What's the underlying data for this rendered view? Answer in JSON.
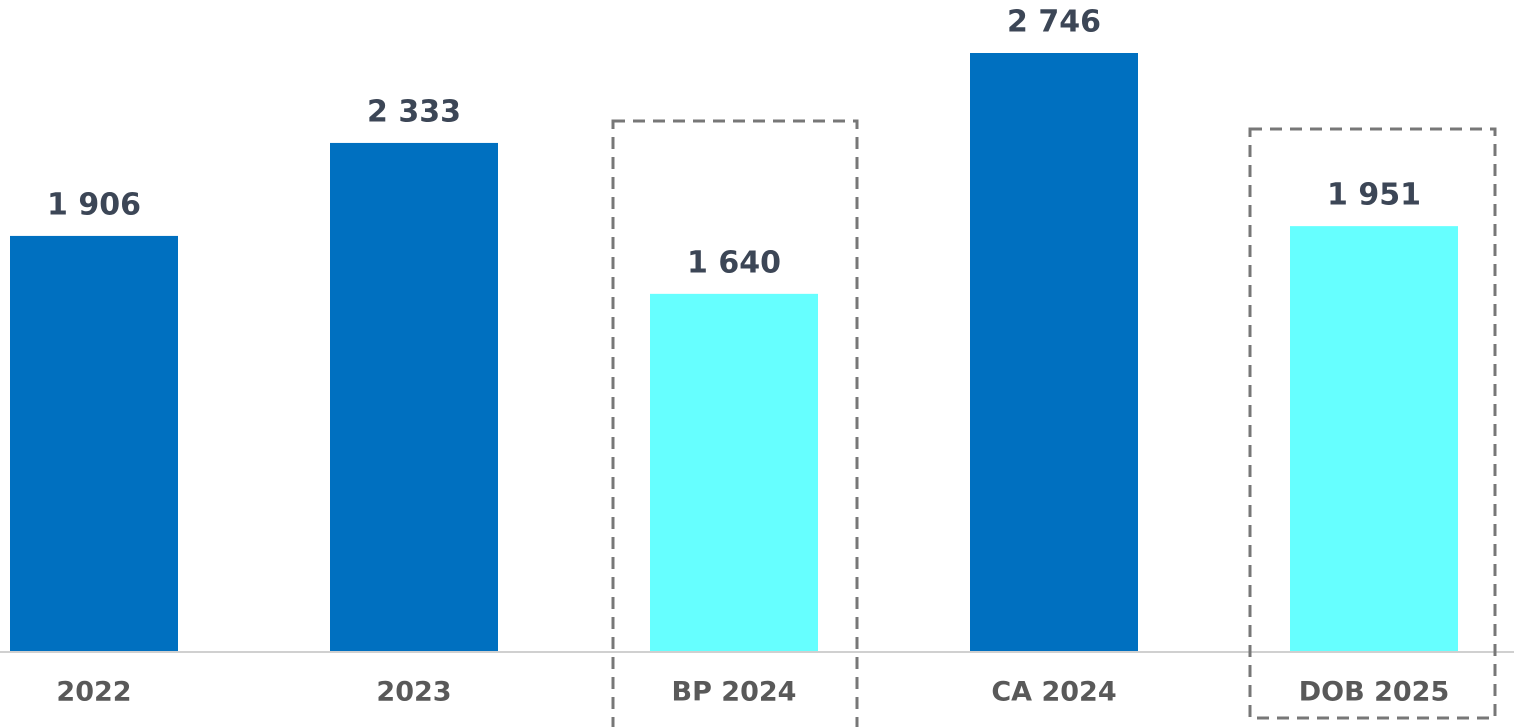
{
  "chart_data": {
    "type": "bar",
    "categories": [
      "2022",
      "2023",
      "BP 2024",
      "CA 2024",
      "DOB 2025"
    ],
    "values": [
      1906,
      2333,
      1640,
      2746,
      1951
    ],
    "value_labels": [
      "1 906",
      "2 333",
      "1 640",
      "2 746",
      "1 951"
    ],
    "colors": [
      "#0070c0",
      "#0070c0",
      "#66ffff",
      "#0070c0",
      "#66ffff"
    ]
  }
}
